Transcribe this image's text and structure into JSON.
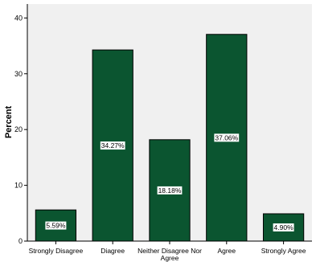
{
  "chart_data": {
    "type": "bar",
    "categories": [
      "Strongly Disagree",
      "Diagree",
      "Neither Disagree Nor Agree",
      "Agree",
      "Strongly Agree"
    ],
    "category_lines": [
      [
        "Strongly Disagree"
      ],
      [
        "Diagree"
      ],
      [
        "Neither Disagree Nor",
        "Agree"
      ],
      [
        "Agree"
      ],
      [
        "Strongly Agree"
      ]
    ],
    "values": [
      5.59,
      34.27,
      18.18,
      37.06,
      4.9
    ],
    "data_labels": [
      "5.59%",
      "34.27%",
      "18.18%",
      "37.06%",
      "4.90%"
    ],
    "title": "",
    "xlabel": "",
    "ylabel": "Percent",
    "ylim": [
      0,
      42.5
    ],
    "yticks": [
      0,
      10,
      20,
      30,
      40
    ],
    "grid": false,
    "colors": {
      "bar": "#0b5530",
      "plot_background": "#f0f0f0",
      "label_box": "#ffffff"
    }
  }
}
